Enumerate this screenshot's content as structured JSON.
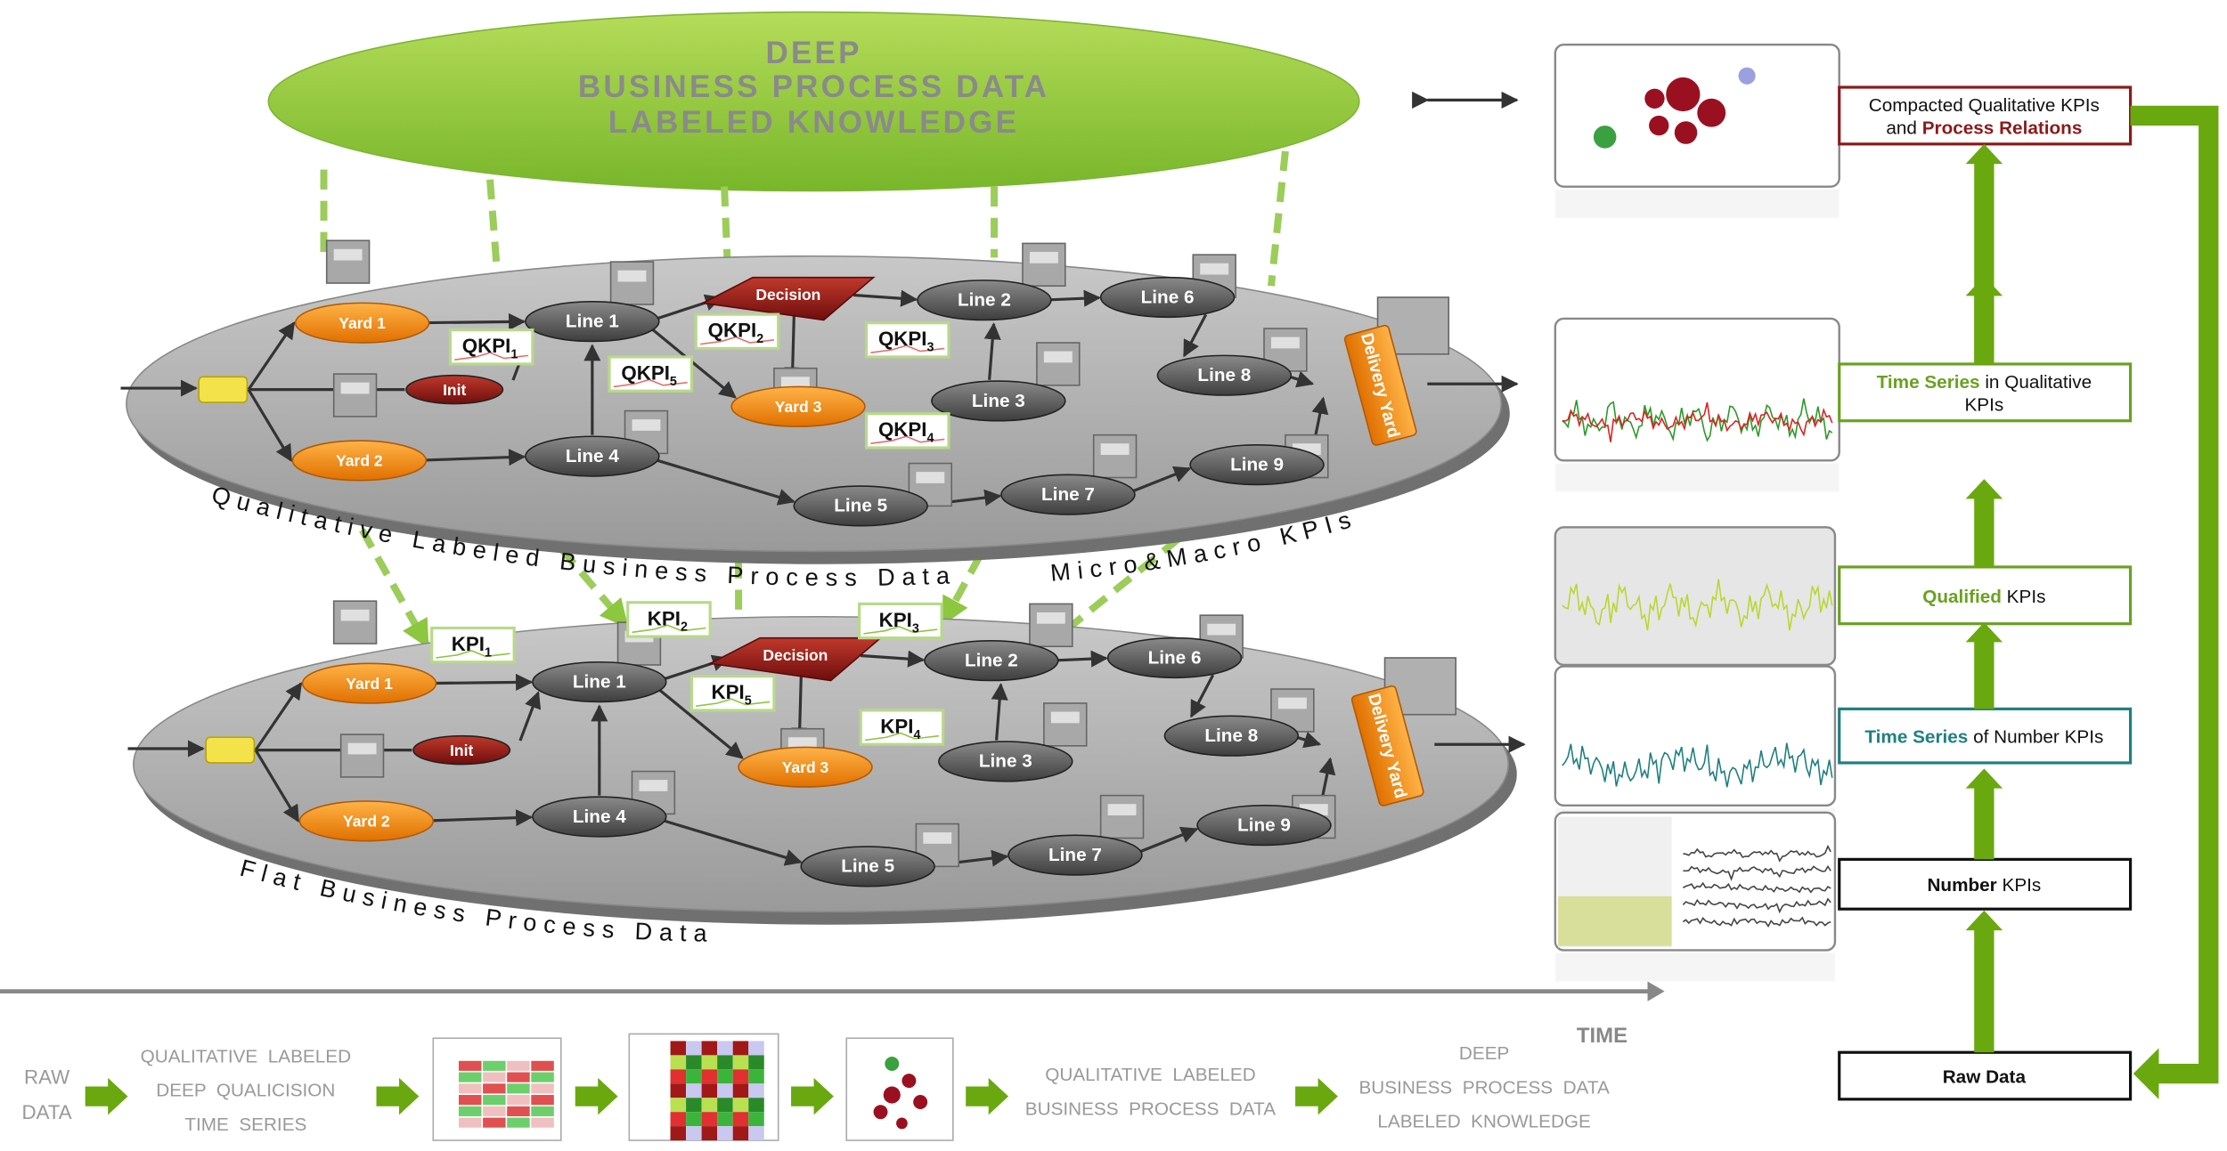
{
  "top_ellipse": {
    "lines": [
      "DEEP",
      "BUSINESS PROCESS DATA",
      "LABELED KNOWLEDGE"
    ]
  },
  "planes": [
    {
      "label": "Qualitative Labeled Business Process Data",
      "side_label": "Micro&Macro KPIs",
      "nodes": [
        "Yard 1",
        "Init",
        "Yard 2",
        "Line 1",
        "Line 4",
        "Decision",
        "Yard 3",
        "Line 2",
        "Line 3",
        "Line 5",
        "Line 6",
        "Line 7",
        "Line 8",
        "Line 9",
        "Delivery Yard"
      ],
      "kpis": [
        {
          "base": "QKPI",
          "sub": "1"
        },
        {
          "base": "QKPI",
          "sub": "2"
        },
        {
          "base": "QKPI",
          "sub": "3"
        },
        {
          "base": "QKPI",
          "sub": "4"
        },
        {
          "base": "QKPI",
          "sub": "5"
        }
      ]
    },
    {
      "label": "Flat Business Process Data",
      "nodes": [
        "Yard 1",
        "Init",
        "Yard 2",
        "Line 1",
        "Line 4",
        "Decision",
        "Yard 3",
        "Line 2",
        "Line 3",
        "Line 5",
        "Line 6",
        "Line 7",
        "Line 8",
        "Line 9",
        "Delivery Yard"
      ],
      "kpis": [
        {
          "base": "KPI",
          "sub": "1"
        },
        {
          "base": "KPI",
          "sub": "2"
        },
        {
          "base": "KPI",
          "sub": "3"
        },
        {
          "base": "KPI",
          "sub": "4"
        },
        {
          "base": "KPI",
          "sub": "5"
        }
      ]
    }
  ],
  "right_boxes": [
    {
      "color": "#8b1a1a",
      "lines": [
        [
          {
            "text": "Compacted Qualitative KPIs"
          }
        ],
        [
          {
            "text": "and "
          },
          {
            "text": "Process Relations",
            "emph": true
          }
        ]
      ]
    },
    {
      "color": "#6aa121",
      "lines": [
        [
          {
            "text": "Time Series",
            "emph": true
          },
          {
            "text": " in Qualitative"
          }
        ],
        [
          {
            "text": "KPIs"
          }
        ]
      ]
    },
    {
      "color": "#6aa121",
      "lines": [
        [
          {
            "text": "Qualified",
            "emph": true
          },
          {
            "text": " KPIs"
          }
        ]
      ]
    },
    {
      "color": "#1f7f80",
      "lines": [
        [
          {
            "text": "Time Series",
            "emph": true
          },
          {
            "text": " of Number KPIs"
          }
        ]
      ]
    },
    {
      "color": "#111111",
      "lines": [
        [
          {
            "text": "Number",
            "emph": true
          },
          {
            "text": " KPIs"
          }
        ]
      ]
    },
    {
      "color": "#111111",
      "lines": [
        [
          {
            "text": "Raw Data",
            "emph": true
          }
        ]
      ]
    }
  ],
  "time_label": "TIME",
  "pipeline": {
    "raw": [
      "RAW",
      "DATA"
    ],
    "qualicision": [
      "QUALITATIVE  LABELED",
      "DEEP  QUALICISION",
      "TIME  SERIES"
    ],
    "qualitative": [
      "QUALITATIVE  LABELED",
      "BUSINESS  PROCESS  DATA"
    ],
    "deep": [
      "DEEP",
      "BUSINESS  PROCESS  DATA",
      "LABELED  KNOWLEDGE"
    ]
  }
}
